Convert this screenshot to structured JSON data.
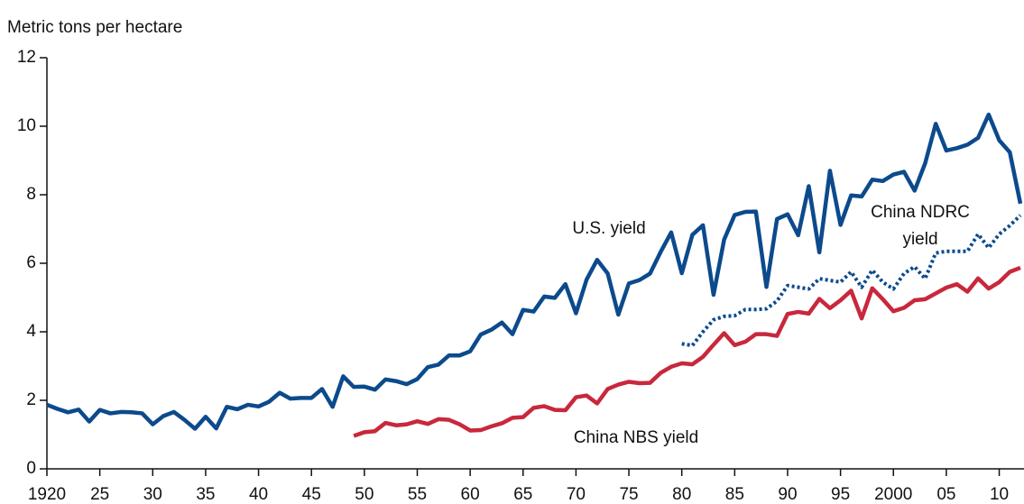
{
  "chart_data": {
    "type": "line",
    "y_label": "Metric tons per hectare",
    "x": [
      1920,
      1921,
      1922,
      1923,
      1924,
      1925,
      1926,
      1927,
      1928,
      1929,
      1930,
      1931,
      1932,
      1933,
      1934,
      1935,
      1936,
      1937,
      1938,
      1939,
      1940,
      1941,
      1942,
      1943,
      1944,
      1945,
      1946,
      1947,
      1948,
      1949,
      1950,
      1951,
      1952,
      1953,
      1954,
      1955,
      1956,
      1957,
      1958,
      1959,
      1960,
      1961,
      1962,
      1963,
      1964,
      1965,
      1966,
      1967,
      1968,
      1969,
      1970,
      1971,
      1972,
      1973,
      1974,
      1975,
      1976,
      1977,
      1978,
      1979,
      1980,
      1981,
      1982,
      1983,
      1984,
      1985,
      1986,
      1987,
      1988,
      1989,
      1990,
      1991,
      1992,
      1993,
      1994,
      1995,
      1996,
      1997,
      1998,
      1999,
      2000,
      2001,
      2002,
      2003,
      2004,
      2005,
      2006,
      2007,
      2008,
      2009,
      2010,
      2011,
      2012
    ],
    "series": [
      {
        "name": "U.S. yield",
        "color": "#0c4a8c",
        "dash": "solid",
        "values": [
          1.87,
          1.75,
          1.65,
          1.73,
          1.38,
          1.72,
          1.62,
          1.66,
          1.65,
          1.62,
          1.3,
          1.54,
          1.66,
          1.43,
          1.17,
          1.52,
          1.18,
          1.81,
          1.74,
          1.87,
          1.82,
          1.96,
          2.22,
          2.05,
          2.07,
          2.07,
          2.33,
          1.81,
          2.7,
          2.39,
          2.4,
          2.31,
          2.61,
          2.56,
          2.47,
          2.62,
          2.97,
          3.04,
          3.31,
          3.31,
          3.43,
          3.92,
          4.06,
          4.27,
          3.93,
          4.64,
          4.59,
          5.03,
          4.99,
          5.39,
          4.54,
          5.52,
          6.1,
          5.7,
          4.5,
          5.41,
          5.51,
          5.7,
          6.33,
          6.9,
          5.71,
          6.83,
          7.11,
          5.08,
          6.69,
          7.41,
          7.5,
          7.51,
          5.31,
          7.29,
          7.43,
          6.82,
          8.25,
          6.32,
          8.7,
          7.12,
          7.98,
          7.95,
          8.44,
          8.4,
          8.59,
          8.67,
          8.12,
          8.92,
          10.07,
          9.29,
          9.36,
          9.46,
          9.66,
          10.34,
          9.59,
          9.24,
          7.74
        ]
      },
      {
        "name": "China NBS yield",
        "color": "#c8283c",
        "dash": "solid",
        "values": [
          null,
          null,
          null,
          null,
          null,
          null,
          null,
          null,
          null,
          null,
          null,
          null,
          null,
          null,
          null,
          null,
          null,
          null,
          null,
          null,
          null,
          null,
          null,
          null,
          null,
          null,
          null,
          null,
          null,
          0.96,
          1.07,
          1.1,
          1.34,
          1.27,
          1.3,
          1.39,
          1.31,
          1.45,
          1.43,
          1.3,
          1.12,
          1.13,
          1.24,
          1.33,
          1.49,
          1.51,
          1.78,
          1.83,
          1.72,
          1.71,
          2.09,
          2.14,
          1.91,
          2.33,
          2.46,
          2.54,
          2.5,
          2.51,
          2.8,
          2.98,
          3.08,
          3.05,
          3.27,
          3.62,
          3.96,
          3.61,
          3.71,
          3.93,
          3.93,
          3.88,
          4.52,
          4.58,
          4.53,
          4.96,
          4.69,
          4.92,
          5.2,
          4.39,
          5.27,
          4.95,
          4.6,
          4.7,
          4.92,
          4.95,
          5.12,
          5.29,
          5.39,
          5.17,
          5.56,
          5.26,
          5.45,
          5.75,
          5.87
        ]
      },
      {
        "name": "China NDRC yield",
        "color": "#0c4a8c",
        "dash": "dotted",
        "values": [
          null,
          null,
          null,
          null,
          null,
          null,
          null,
          null,
          null,
          null,
          null,
          null,
          null,
          null,
          null,
          null,
          null,
          null,
          null,
          null,
          null,
          null,
          null,
          null,
          null,
          null,
          null,
          null,
          null,
          null,
          null,
          null,
          null,
          null,
          null,
          null,
          null,
          null,
          null,
          null,
          null,
          null,
          null,
          null,
          null,
          null,
          null,
          null,
          null,
          null,
          null,
          null,
          null,
          null,
          null,
          null,
          null,
          null,
          null,
          null,
          3.65,
          3.6,
          4.0,
          4.35,
          4.45,
          4.47,
          4.65,
          4.65,
          4.67,
          4.9,
          5.35,
          5.3,
          5.25,
          5.55,
          5.5,
          5.45,
          5.75,
          5.3,
          5.8,
          5.45,
          5.25,
          5.7,
          5.9,
          5.55,
          6.3,
          6.35,
          6.35,
          6.35,
          6.85,
          6.45,
          6.85,
          7.1,
          7.4
        ]
      }
    ],
    "xlim": [
      1920,
      2012
    ],
    "ylim": [
      0,
      12
    ],
    "xticks": [
      1920,
      {
        "value": 1925,
        "label": "25"
      },
      {
        "value": 1930,
        "label": "30"
      },
      {
        "value": 1935,
        "label": "35"
      },
      {
        "value": 1940,
        "label": "40"
      },
      {
        "value": 1945,
        "label": "45"
      },
      {
        "value": 1950,
        "label": "50"
      },
      {
        "value": 1955,
        "label": "55"
      },
      {
        "value": 1960,
        "label": "60"
      },
      {
        "value": 1965,
        "label": "65"
      },
      {
        "value": 1970,
        "label": "70"
      },
      {
        "value": 1975,
        "label": "75"
      },
      {
        "value": 1980,
        "label": "80"
      },
      {
        "value": 1985,
        "label": "85"
      },
      {
        "value": 1990,
        "label": "90"
      },
      {
        "value": 1995,
        "label": "95"
      },
      2000,
      {
        "value": 2005,
        "label": "05"
      },
      {
        "value": 2010,
        "label": "10"
      }
    ],
    "yticks": [
      0,
      2,
      4,
      6,
      8,
      10,
      12
    ],
    "grid": false
  }
}
